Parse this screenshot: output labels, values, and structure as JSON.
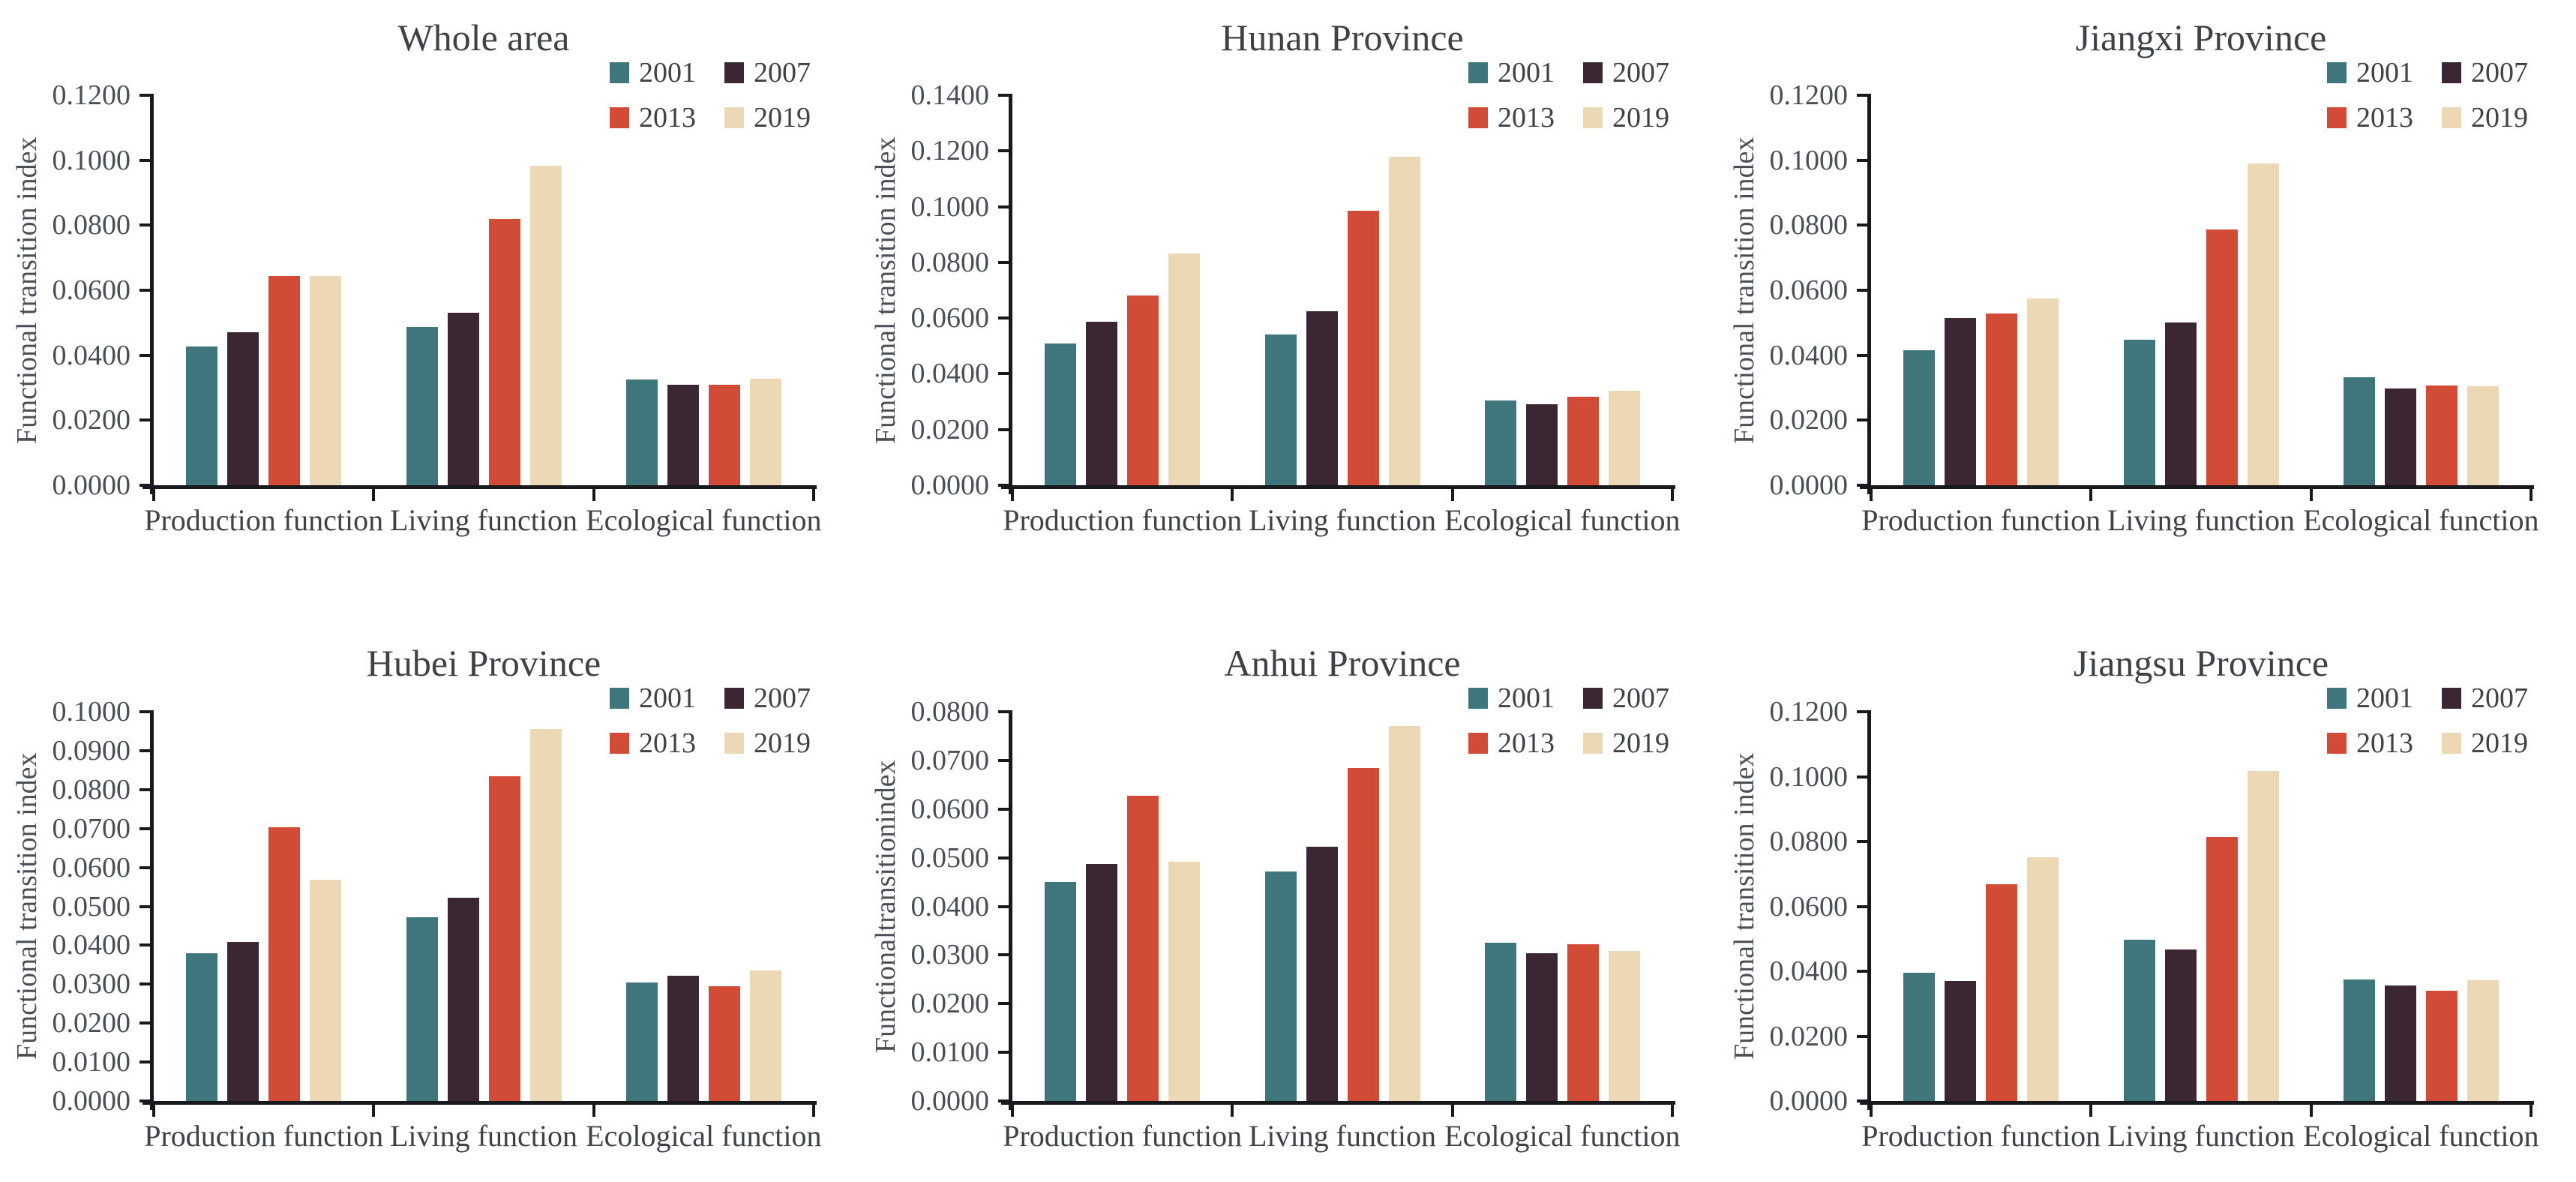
{
  "figure": {
    "background": "#ffffff",
    "index_label": "Functional transition index"
  },
  "palette": {
    "2001": "#3F767C",
    "2007": "#3B2634",
    "2013": "#D14B36",
    "2019": "#ECD8B4"
  },
  "chart_data": [
    {
      "type": "bar",
      "title": "Whole area",
      "ylabel": "Functional transition index",
      "xlabel": "",
      "categories": [
        "Production function",
        "Living function",
        "Ecological function"
      ],
      "ylim": [
        0,
        0.12
      ],
      "yticks": [
        "0.0000",
        "0.0200",
        "0.0400",
        "0.0600",
        "0.0800",
        "0.1000",
        "0.1200"
      ],
      "grid": false,
      "legend_position": "top-right",
      "series": [
        {
          "name": "2001",
          "color": "#3F767C",
          "values": [
            0.0428,
            0.0487,
            0.0325
          ]
        },
        {
          "name": "2007",
          "color": "#3B2634",
          "values": [
            0.047,
            0.053,
            0.031
          ]
        },
        {
          "name": "2013",
          "color": "#D14B36",
          "values": [
            0.0645,
            0.082,
            0.031
          ]
        },
        {
          "name": "2019",
          "color": "#ECD8B4",
          "values": [
            0.0645,
            0.0983,
            0.0328
          ]
        }
      ]
    },
    {
      "type": "bar",
      "title": "Hunan Province",
      "ylabel": "Functional transition index",
      "xlabel": "",
      "categories": [
        "Production function",
        "Living function",
        "Ecological function"
      ],
      "ylim": [
        0,
        0.14
      ],
      "yticks": [
        "0.0000",
        "0.0200",
        "0.0400",
        "0.0600",
        "0.0800",
        "0.1000",
        "0.1200",
        "0.1400"
      ],
      "grid": false,
      "legend_position": "top-right",
      "series": [
        {
          "name": "2001",
          "color": "#3F767C",
          "values": [
            0.051,
            0.054,
            0.0305
          ]
        },
        {
          "name": "2007",
          "color": "#3B2634",
          "values": [
            0.0588,
            0.0625,
            0.0292
          ]
        },
        {
          "name": "2013",
          "color": "#D14B36",
          "values": [
            0.068,
            0.0985,
            0.0318
          ]
        },
        {
          "name": "2019",
          "color": "#ECD8B4",
          "values": [
            0.0833,
            0.118,
            0.0338
          ]
        }
      ]
    },
    {
      "type": "bar",
      "title": "Jiangxi Province",
      "ylabel": "Functional transition index",
      "xlabel": "",
      "categories": [
        "Production function",
        "Living function",
        "Ecological function"
      ],
      "ylim": [
        0,
        0.12
      ],
      "yticks": [
        "0.0000",
        "0.0200",
        "0.0400",
        "0.0600",
        "0.0800",
        "0.1000",
        "0.1200"
      ],
      "grid": false,
      "legend_position": "top-right",
      "series": [
        {
          "name": "2001",
          "color": "#3F767C",
          "values": [
            0.0415,
            0.0448,
            0.0332
          ]
        },
        {
          "name": "2007",
          "color": "#3B2634",
          "values": [
            0.0515,
            0.05,
            0.0297
          ]
        },
        {
          "name": "2013",
          "color": "#D14B36",
          "values": [
            0.0528,
            0.0788,
            0.0306
          ]
        },
        {
          "name": "2019",
          "color": "#ECD8B4",
          "values": [
            0.0575,
            0.099,
            0.0305
          ]
        }
      ]
    },
    {
      "type": "bar",
      "title": "Hubei Province",
      "ylabel": "Functional transition index",
      "xlabel": "",
      "categories": [
        "Production function",
        "Living function",
        "Ecological function"
      ],
      "ylim": [
        0,
        0.1
      ],
      "yticks": [
        "0.0000",
        "0.0100",
        "0.0200",
        "0.0300",
        "0.0400",
        "0.0500",
        "0.0600",
        "0.0700",
        "0.0800",
        "0.0900",
        "0.1000"
      ],
      "grid": false,
      "legend_position": "top-right",
      "series": [
        {
          "name": "2001",
          "color": "#3F767C",
          "values": [
            0.0379,
            0.0473,
            0.0305
          ]
        },
        {
          "name": "2007",
          "color": "#3B2634",
          "values": [
            0.0409,
            0.0523,
            0.0322
          ]
        },
        {
          "name": "2013",
          "color": "#D14B36",
          "values": [
            0.0703,
            0.0835,
            0.0295
          ]
        },
        {
          "name": "2019",
          "color": "#ECD8B4",
          "values": [
            0.0569,
            0.0955,
            0.0335
          ]
        }
      ]
    },
    {
      "type": "bar",
      "title": "Anhui Province",
      "ylabel": "Functionaltransitionindex",
      "xlabel": "",
      "categories": [
        "Production function",
        "Living function",
        "Ecological function"
      ],
      "ylim": [
        0,
        0.08
      ],
      "yticks": [
        "0.0000",
        "0.0100",
        "0.0200",
        "0.0300",
        "0.0400",
        "0.0500",
        "0.0600",
        "0.0700",
        "0.0800"
      ],
      "grid": false,
      "legend_position": "top-right",
      "series": [
        {
          "name": "2001",
          "color": "#3F767C",
          "values": [
            0.045,
            0.0472,
            0.0325
          ]
        },
        {
          "name": "2007",
          "color": "#3B2634",
          "values": [
            0.0487,
            0.0523,
            0.0303
          ]
        },
        {
          "name": "2013",
          "color": "#D14B36",
          "values": [
            0.0628,
            0.0685,
            0.0322
          ]
        },
        {
          "name": "2019",
          "color": "#ECD8B4",
          "values": [
            0.0492,
            0.077,
            0.0308
          ]
        }
      ]
    },
    {
      "type": "bar",
      "title": "Jiangsu Province",
      "ylabel": "Functional transition index",
      "xlabel": "",
      "categories": [
        "Production function",
        "Living function",
        "Ecological function"
      ],
      "ylim": [
        0,
        0.12
      ],
      "yticks": [
        "0.0000",
        "0.0200",
        "0.0400",
        "0.0600",
        "0.0800",
        "0.1000",
        "0.1200"
      ],
      "grid": false,
      "legend_position": "top-right",
      "series": [
        {
          "name": "2001",
          "color": "#3F767C",
          "values": [
            0.0395,
            0.0497,
            0.0375
          ]
        },
        {
          "name": "2007",
          "color": "#3B2634",
          "values": [
            0.037,
            0.0467,
            0.0355
          ]
        },
        {
          "name": "2013",
          "color": "#D14B36",
          "values": [
            0.0668,
            0.0813,
            0.034
          ]
        },
        {
          "name": "2019",
          "color": "#ECD8B4",
          "values": [
            0.0752,
            0.1018,
            0.0373
          ]
        }
      ]
    }
  ]
}
